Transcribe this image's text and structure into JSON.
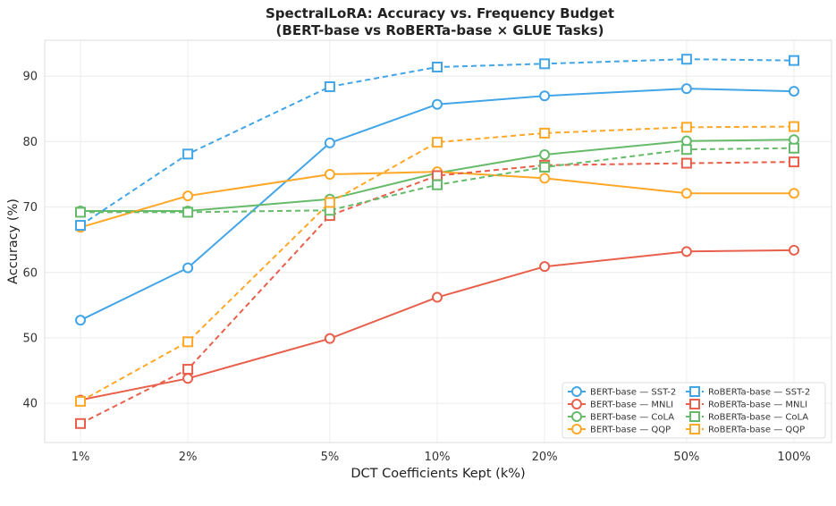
{
  "chart_data": {
    "type": "line",
    "title_line1": "SpectralLoRA: Accuracy vs. Frequency Budget",
    "title_line2": "(BERT-base vs RoBERTa-base × GLUE Tasks)",
    "xlabel": "DCT Coefficients Kept (k%)",
    "ylabel": "Accuracy (%)",
    "x_scale": "log",
    "categories": [
      "1%",
      "2%",
      "5%",
      "10%",
      "20%",
      "50%",
      "100%"
    ],
    "x": [
      1,
      2,
      5,
      10,
      20,
      50,
      100
    ],
    "ylim": [
      34,
      95.5
    ],
    "yticks": [
      40,
      50,
      60,
      70,
      80,
      90
    ],
    "grid": true,
    "legend_position": "lower-right",
    "series": [
      {
        "name": "BERT-base — SST-2",
        "color": "#42a5e8",
        "marker": "circle",
        "dash": false,
        "values": [
          52.7,
          60.7,
          79.8,
          85.7,
          87.0,
          88.1,
          87.7
        ]
      },
      {
        "name": "BERT-base — MNLI",
        "color": "#e8604c",
        "marker": "circle",
        "dash": false,
        "values": [
          40.5,
          43.8,
          49.9,
          56.2,
          60.9,
          63.2,
          63.4
        ]
      },
      {
        "name": "BERT-base — CoLA",
        "color": "#66bb6a",
        "marker": "circle",
        "dash": false,
        "values": [
          69.4,
          69.4,
          71.2,
          75.2,
          78.0,
          80.1,
          80.3
        ]
      },
      {
        "name": "BERT-base — QQP",
        "color": "#ffa726",
        "marker": "circle",
        "dash": false,
        "values": [
          66.9,
          71.7,
          75.0,
          75.4,
          74.4,
          72.1,
          72.1
        ]
      },
      {
        "name": "RoBERTa-base — SST-2",
        "color": "#42a5e8",
        "marker": "square",
        "dash": true,
        "values": [
          67.2,
          78.1,
          88.4,
          91.4,
          91.9,
          92.6,
          92.4
        ]
      },
      {
        "name": "RoBERTa-base — MNLI",
        "color": "#e8604c",
        "marker": "square",
        "dash": true,
        "values": [
          36.9,
          45.2,
          68.7,
          74.8,
          76.4,
          76.7,
          76.9
        ]
      },
      {
        "name": "RoBERTa-base — CoLA",
        "color": "#66bb6a",
        "marker": "square",
        "dash": true,
        "values": [
          69.2,
          69.2,
          69.5,
          73.4,
          76.1,
          78.8,
          79.0
        ]
      },
      {
        "name": "RoBERTa-base — QQP",
        "color": "#ffa726",
        "marker": "square",
        "dash": true,
        "values": [
          40.3,
          49.4,
          70.7,
          79.9,
          81.3,
          82.2,
          82.3
        ]
      }
    ]
  }
}
